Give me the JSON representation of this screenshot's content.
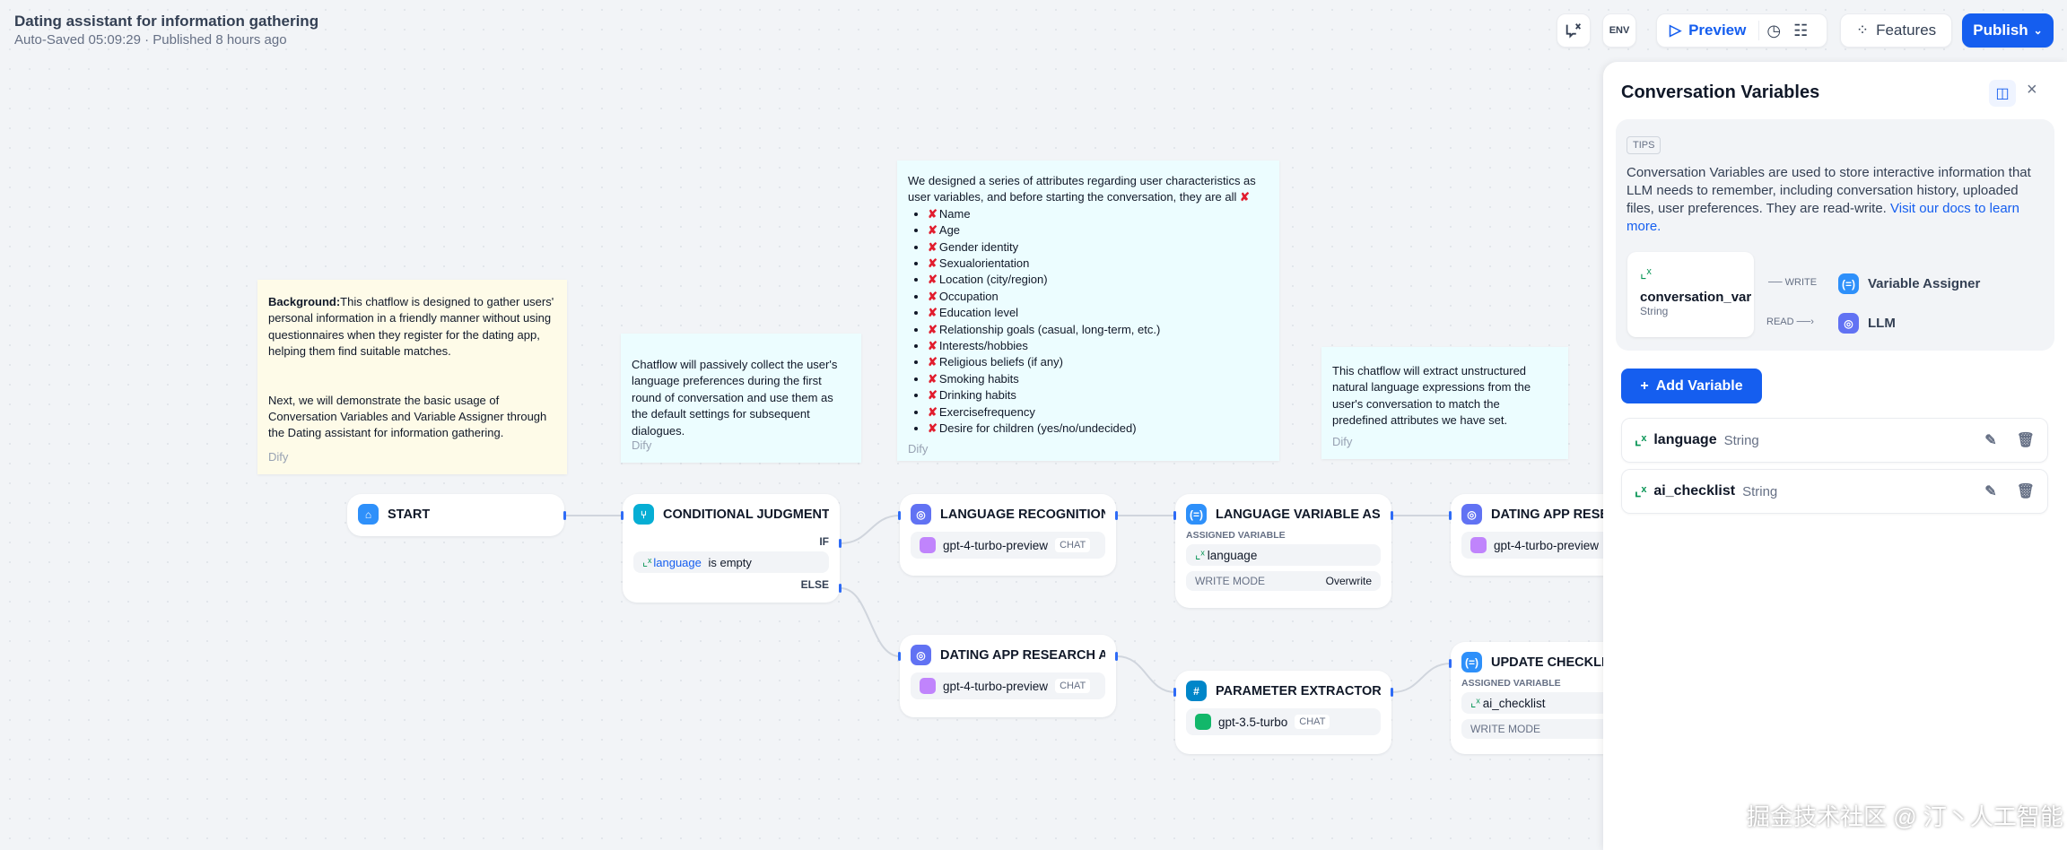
{
  "header": {
    "title": "Dating assistant for information gathering",
    "subtitle": "Auto-Saved 05:09:29 · Published 8 hours ago",
    "preview": "Preview",
    "features": "Features",
    "publish": "Publish",
    "env": "ENV"
  },
  "notes": [
    {
      "html_bold": "Background:",
      "text": "This chatflow is designed to gather users' personal information in a friendly manner without using questionnaires when they register for the dating app, helping them find suitable matches.",
      "text2": "Next, we will demonstrate the basic usage of Conversation Variables and Variable Assigner through the Dating assistant for information gathering.",
      "footer": "Dify"
    },
    {
      "text": "Chatflow will passively collect the user's language preferences during the first round of conversation and use them as the default settings for subsequent dialogues.",
      "footer": "Dify"
    },
    {
      "text": "We designed a series of attributes regarding user characteristics as user variables, and before starting the conversation, they are all",
      "items": [
        "Name",
        "Age",
        "Gender identity",
        "Sexualorientation",
        "Location (city/region)",
        "Occupation",
        "Education level",
        "Relationship goals (casual, long-term, etc.)",
        "Interests/hobbies",
        "Religious beliefs (if any)",
        "Smoking habits",
        "Drinking habits",
        "Exercisefrequency",
        "Desire for children (yes/no/undecided)"
      ],
      "footer": "Dify"
    },
    {
      "text": "This chatflow will extract unstructured natural language expressions from the user's conversation to match the predefined attributes we have set.",
      "footer": "Dify"
    }
  ],
  "nodes": {
    "start": {
      "title": "START"
    },
    "cond": {
      "title": "CONDITIONAL JUDGMENT",
      "if": "IF",
      "else": "ELSE",
      "var": "language",
      "cond": "is empty"
    },
    "langrec": {
      "title": "LANGUAGE RECOGNITION",
      "model": "gpt-4-turbo-preview",
      "mode": "CHAT"
    },
    "lva": {
      "title": "LANGUAGE VARIABLE AS...",
      "assigned": "ASSIGNED VARIABLE",
      "var": "language",
      "write_mode": "WRITE MODE",
      "mode_val": "Overwrite"
    },
    "dating1": {
      "title": "DATING APP RESEARCH ASSISTANT",
      "model": "gpt-4-turbo-preview"
    },
    "dating2": {
      "title": "DATING APP RESEARCH A...",
      "model": "gpt-4-turbo-preview",
      "mode": "CHAT"
    },
    "param": {
      "title": "PARAMETER EXTRACTOR",
      "model": "gpt-3.5-turbo",
      "mode": "CHAT"
    },
    "update": {
      "title": "UPDATE CHECKLIST",
      "assigned": "ASSIGNED VARIABLE",
      "var": "ai_checklist",
      "write_mode": "WRITE MODE"
    }
  },
  "panel": {
    "title": "Conversation Variables",
    "tips": "TIPS",
    "desc": "Conversation Variables are used to store interactive information that LLM needs to remember, including conversation history, uploaded files, user preferences. They are read-write.",
    "link": "Visit our docs to learn more.",
    "example_var": "conversation_var",
    "example_type": "String",
    "write": "WRITE",
    "read": "READ",
    "assigner": "Variable Assigner",
    "llm": "LLM",
    "add": "Add Variable",
    "variables": [
      {
        "name": "language",
        "type": "String"
      },
      {
        "name": "ai_checklist",
        "type": "String"
      }
    ]
  },
  "watermark": "掘金技术社区 @ 汀丶人工智能",
  "colors": {
    "accent": "#155eef",
    "green": "#079455",
    "llm": "#6172f3",
    "assigner": "#2e90fa"
  }
}
